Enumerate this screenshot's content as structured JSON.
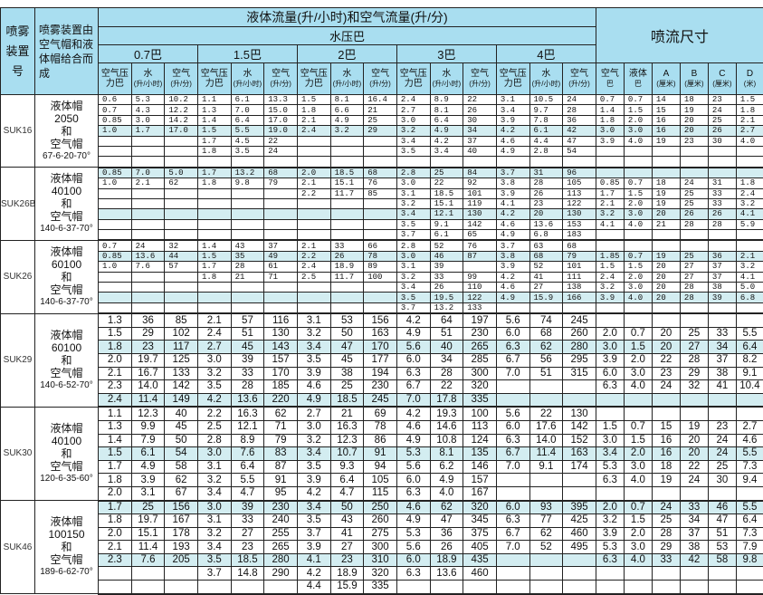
{
  "header": {
    "model_col": "喷雾装置号",
    "desc_col": "喷雾装置由空气帽和液体帽给合而成",
    "flow_title": "液体流量(升/小时)和空气流量(升/分)",
    "water_pressure": "水压巴",
    "jet_title": "喷流尺寸",
    "pressures": [
      "0.7巴",
      "1.5巴",
      "2巴",
      "3巴",
      "4巴"
    ],
    "sub_air_pressure": "空气压力巴",
    "sub_water": "水",
    "sub_water_unit": "(升/小时)",
    "sub_air": "空气",
    "sub_air_unit": "(升/分)",
    "jet_cols": [
      {
        "label": "空气",
        "unit": "巴"
      },
      {
        "label": "液体",
        "unit": "巴"
      },
      {
        "label": "A",
        "unit": "(厘米)"
      },
      {
        "label": "B",
        "unit": "(厘米)"
      },
      {
        "label": "C",
        "unit": "(厘米)"
      },
      {
        "label": "D",
        "unit": "(米)"
      }
    ]
  },
  "colors": {
    "header_bg": "#a9def0",
    "highlight_row": "#d3edf1"
  },
  "groups": [
    {
      "model": "SUK16",
      "liquid_cap": "液体帽",
      "liquid_no": "2050",
      "and": "和",
      "air_cap": "空气帽",
      "air_no": "67-6-20-70°",
      "style": "small",
      "highlight": [
        3
      ],
      "rows": [
        [
          "0.6",
          "5.3",
          "10.2",
          "1.1",
          "6.1",
          "13.3",
          "1.5",
          "8.1",
          "16.4",
          "2.4",
          "8.9",
          "22",
          "3.1",
          "10.5",
          "24",
          "0.7",
          "0.7",
          "14",
          "18",
          "23",
          "1.5"
        ],
        [
          "0.7",
          "4.3",
          "12.2",
          "1.3",
          "7.0",
          "15.0",
          "1.8",
          "6.6",
          "21",
          "2.7",
          "8.1",
          "26",
          "3.4",
          "9.7",
          "28",
          "1.4",
          "1.5",
          "15",
          "19",
          "24",
          "1.8"
        ],
        [
          "0.85",
          "3.0",
          "14.2",
          "1.4",
          "6.4",
          "17.0",
          "2.1",
          "4.9",
          "25",
          "3.0",
          "6.4",
          "30",
          "3.9",
          "7.8",
          "36",
          "1.8",
          "2.0",
          "16",
          "20",
          "25",
          "2.1"
        ],
        [
          "1.0",
          "1.7",
          "17.0",
          "1.5",
          "5.5",
          "19.0",
          "2.4",
          "3.2",
          "29",
          "3.2",
          "4.9",
          "34",
          "4.2",
          "6.1",
          "42",
          "3.0",
          "3.0",
          "16",
          "20",
          "26",
          "2.7"
        ],
        [
          "",
          "",
          "",
          "1.7",
          "4.5",
          "22",
          "",
          "",
          "",
          "3.4",
          "4.2",
          "37",
          "4.6",
          "4.4",
          "47",
          "3.9",
          "4.0",
          "19",
          "23",
          "30",
          "4.0"
        ],
        [
          "",
          "",
          "",
          "1.8",
          "3.5",
          "24",
          "",
          "",
          "",
          "3.5",
          "3.4",
          "40",
          "4.9",
          "2.8",
          "54",
          "",
          "",
          "",
          "",
          "",
          ""
        ],
        [
          "",
          "",
          "",
          "",
          "",
          "",
          "",
          "",
          "",
          "",
          "",
          "",
          "",
          "",
          "",
          "",
          "",
          "",
          "",
          "",
          ""
        ]
      ]
    },
    {
      "model": "SUK26B",
      "liquid_cap": "液体帽",
      "liquid_no": "40100",
      "and": "和",
      "air_cap": "空气帽",
      "air_no": "140-6-37-70°",
      "style": "small",
      "highlight": [
        0,
        4
      ],
      "rows": [
        [
          "0.85",
          "7.0",
          "5.0",
          "1.7",
          "13.2",
          "68",
          "2.0",
          "18.5",
          "68",
          "2.8",
          "25",
          "84",
          "3.7",
          "31",
          "96",
          "",
          "",
          "",
          "",
          "",
          ""
        ],
        [
          "1.0",
          "2.1",
          "62",
          "1.8",
          "9.8",
          "79",
          "2.1",
          "15.1",
          "76",
          "3.0",
          "22",
          "92",
          "3.8",
          "28",
          "105",
          "0.85",
          "0.7",
          "18",
          "24",
          "31",
          "1.8"
        ],
        [
          "",
          "",
          "",
          "",
          "",
          "",
          "2.2",
          "11.7",
          "85",
          "3.1",
          "18.5",
          "101",
          "3.9",
          "26",
          "113",
          "1.7",
          "1.5",
          "19",
          "25",
          "33",
          "2.4"
        ],
        [
          "",
          "",
          "",
          "",
          "",
          "",
          "",
          "",
          "",
          "3.2",
          "15.1",
          "119",
          "4.1",
          "23",
          "122",
          "2.1",
          "2.0",
          "19",
          "25",
          "33",
          "3.2"
        ],
        [
          "",
          "",
          "",
          "",
          "",
          "",
          "",
          "",
          "",
          "3.4",
          "12.1",
          "130",
          "4.2",
          "20",
          "130",
          "3.2",
          "3.0",
          "20",
          "26",
          "26",
          "4.1"
        ],
        [
          "",
          "",
          "",
          "",
          "",
          "",
          "",
          "",
          "",
          "3.5",
          "9.1",
          "142",
          "4.6",
          "13.6",
          "153",
          "4.1",
          "4.0",
          "21",
          "28",
          "28",
          "5.9"
        ],
        [
          "",
          "",
          "",
          "",
          "",
          "",
          "",
          "",
          "",
          "3.7",
          "6.1",
          "65",
          "4.9",
          "6.8",
          "183",
          "",
          "",
          "",
          "",
          "",
          ""
        ]
      ]
    },
    {
      "model": "SUK26",
      "liquid_cap": "液体帽",
      "liquid_no": "60100",
      "and": "和",
      "air_cap": "空气帽",
      "air_no": "140-6-37-70°",
      "style": "small",
      "highlight": [
        1,
        5
      ],
      "rows": [
        [
          "0.7",
          "24",
          "32",
          "1.4",
          "43",
          "37",
          "2.1",
          "33",
          "66",
          "2.8",
          "52",
          "76",
          "3.7",
          "63",
          "68",
          "",
          "",
          "",
          "",
          "",
          ""
        ],
        [
          "0.85",
          "13.6",
          "44",
          "1.5",
          "35",
          "49",
          "2.2",
          "26",
          "78",
          "3.0",
          "46",
          "87",
          "3.8",
          "68",
          "79",
          "1.85",
          "0.7",
          "19",
          "25",
          "36",
          "2.1"
        ],
        [
          "1.0",
          "7.6",
          "57",
          "1.7",
          "28",
          "61",
          "2.4",
          "18.9",
          "89",
          "3.1",
          "39",
          "",
          "3.9",
          "52",
          "101",
          "1.5",
          "1.5",
          "20",
          "27",
          "37",
          "3.2"
        ],
        [
          "",
          "",
          "",
          "1.8",
          "21",
          "71",
          "2.5",
          "11.7",
          "100",
          "3.2",
          "33",
          "99",
          "4.2",
          "41",
          "111",
          "2.4",
          "2.0",
          "20",
          "27",
          "37",
          "4.1"
        ],
        [
          "",
          "",
          "",
          "",
          "",
          "",
          "",
          "",
          "",
          "3.4",
          "26",
          "110",
          "4.6",
          "27",
          "138",
          "3.2",
          "3.0",
          "20",
          "28",
          "38",
          "5.0"
        ],
        [
          "",
          "",
          "",
          "",
          "",
          "",
          "",
          "",
          "",
          "3.5",
          "19.5",
          "122",
          "4.9",
          "15.9",
          "166",
          "3.9",
          "4.0",
          "20",
          "28",
          "39",
          "6.8"
        ],
        [
          "",
          "",
          "",
          "",
          "",
          "",
          "",
          "",
          "",
          "3.7",
          "13.2",
          "133",
          "",
          "",
          "",
          "",
          "",
          "",
          "",
          "",
          ""
        ]
      ]
    },
    {
      "model": "SUK29",
      "liquid_cap": "液体帽",
      "liquid_no": "60100",
      "and": "和",
      "air_cap": "空气帽",
      "air_no": "140-6-52-70°",
      "style": "big",
      "highlight": [
        2,
        6
      ],
      "rows": [
        [
          "1.3",
          "36",
          "85",
          "2.1",
          "57",
          "116",
          "3.1",
          "53",
          "156",
          "4.2",
          "64",
          "197",
          "5.6",
          "74",
          "245",
          "",
          "",
          "",
          "",
          "",
          ""
        ],
        [
          "1.5",
          "29",
          "102",
          "2.4",
          "51",
          "130",
          "3.2",
          "50",
          "163",
          "4.9",
          "51",
          "230",
          "6.0",
          "68",
          "260",
          "2.0",
          "0.7",
          "20",
          "25",
          "33",
          "5.5"
        ],
        [
          "1.8",
          "23",
          "117",
          "2.7",
          "45",
          "143",
          "3.4",
          "47",
          "170",
          "5.6",
          "40",
          "265",
          "6.3",
          "62",
          "280",
          "3.0",
          "1.5",
          "20",
          "27",
          "34",
          "6.4"
        ],
        [
          "2.0",
          "19.7",
          "125",
          "3.0",
          "39",
          "157",
          "3.5",
          "45",
          "177",
          "6.0",
          "34",
          "285",
          "6.7",
          "56",
          "295",
          "3.9",
          "2.0",
          "22",
          "28",
          "37",
          "8.2"
        ],
        [
          "2.1",
          "16.7",
          "133",
          "3.2",
          "33",
          "170",
          "3.9",
          "38",
          "194",
          "6.3",
          "28",
          "300",
          "7.0",
          "51",
          "315",
          "6.0",
          "3.0",
          "23",
          "29",
          "38",
          "9.1"
        ],
        [
          "2.3",
          "14.0",
          "142",
          "3.5",
          "28",
          "185",
          "4.6",
          "25",
          "230",
          "6.7",
          "22",
          "320",
          "",
          "",
          "",
          "6.3",
          "4.0",
          "24",
          "32",
          "41",
          "10.4"
        ],
        [
          "2.4",
          "11.4",
          "149",
          "4.2",
          "13.6",
          "220",
          "4.9",
          "18.5",
          "245",
          "7.0",
          "17.8",
          "335",
          "",
          "",
          "",
          "",
          "",
          "",
          "",
          "",
          ""
        ]
      ]
    },
    {
      "model": "SUK30",
      "liquid_cap": "液体帽",
      "liquid_no": "40100",
      "and": "和",
      "air_cap": "空气帽",
      "air_no": "120-6-35-60°",
      "style": "big",
      "highlight": [
        3
      ],
      "rows": [
        [
          "1.1",
          "12.3",
          "40",
          "2.2",
          "16.3",
          "62",
          "2.7",
          "21",
          "69",
          "4.2",
          "19.3",
          "100",
          "5.6",
          "22",
          "130",
          "",
          "",
          "",
          "",
          "",
          ""
        ],
        [
          "1.3",
          "9.9",
          "45",
          "2.5",
          "12.1",
          "71",
          "3.0",
          "16.3",
          "78",
          "4.6",
          "14.6",
          "113",
          "6.0",
          "17.6",
          "142",
          "1.5",
          "0.7",
          "15",
          "19",
          "23",
          "2.7"
        ],
        [
          "1.4",
          "7.9",
          "50",
          "2.8",
          "8.9",
          "79",
          "3.2",
          "12.3",
          "86",
          "4.9",
          "10.8",
          "124",
          "6.3",
          "14.0",
          "152",
          "3.0",
          "1.5",
          "16",
          "20",
          "24",
          "4.6"
        ],
        [
          "1.5",
          "6.1",
          "54",
          "3.0",
          "7.6",
          "83",
          "3.4",
          "10.7",
          "91",
          "5.3",
          "8.1",
          "135",
          "6.7",
          "11.4",
          "163",
          "3.4",
          "2.0",
          "16",
          "20",
          "24",
          "5.5"
        ],
        [
          "1.7",
          "4.9",
          "58",
          "3.1",
          "6.4",
          "87",
          "3.5",
          "9.3",
          "94",
          "5.6",
          "6.2",
          "146",
          "7.0",
          "9.1",
          "174",
          "5.3",
          "3.0",
          "18",
          "22",
          "25",
          "7.3"
        ],
        [
          "1.8",
          "3.9",
          "62",
          "3.2",
          "5.5",
          "91",
          "3.9",
          "6.4",
          "105",
          "6.0",
          "4.9",
          "157",
          "",
          "",
          "",
          "6.3",
          "4.0",
          "19",
          "24",
          "30",
          "9.4"
        ],
        [
          "2.0",
          "3.1",
          "67",
          "3.4",
          "4.7",
          "95",
          "4.2",
          "4.7",
          "115",
          "6.3",
          "4.0",
          "167",
          "",
          "",
          "",
          "",
          "",
          "",
          "",
          "",
          ""
        ]
      ]
    },
    {
      "model": "SUK46",
      "liquid_cap": "液体帽",
      "liquid_no": "100150",
      "and": "和",
      "air_cap": "空气帽",
      "air_no": "189-6-62-70°",
      "style": "big",
      "highlight": [
        0,
        4
      ],
      "rows": [
        [
          "1.7",
          "25",
          "156",
          "3.0",
          "39",
          "230",
          "3.4",
          "50",
          "250",
          "4.6",
          "62",
          "320",
          "6.0",
          "93",
          "395",
          "2.0",
          "0.7",
          "24",
          "33",
          "46",
          "5.5"
        ],
        [
          "1.8",
          "19.7",
          "167",
          "3.1",
          "33",
          "240",
          "3.5",
          "43",
          "260",
          "4.9",
          "47",
          "345",
          "6.3",
          "77",
          "425",
          "3.2",
          "1.5",
          "25",
          "34",
          "47",
          "6.4"
        ],
        [
          "2.0",
          "15.1",
          "178",
          "3.2",
          "27",
          "255",
          "3.7",
          "41",
          "275",
          "5.3",
          "36",
          "375",
          "6.7",
          "62",
          "460",
          "3.9",
          "2.0",
          "28",
          "37",
          "51",
          "7.3"
        ],
        [
          "2.1",
          "11.4",
          "193",
          "3.4",
          "23",
          "265",
          "3.9",
          "27",
          "300",
          "5.6",
          "26",
          "405",
          "7.0",
          "52",
          "495",
          "5.3",
          "3.0",
          "29",
          "38",
          "53",
          "7.9"
        ],
        [
          "2.3",
          "7.6",
          "205",
          "3.5",
          "18.5",
          "280",
          "4.1",
          "23",
          "310",
          "6.0",
          "18.9",
          "435",
          "",
          "",
          "",
          "6.3",
          "4.0",
          "33",
          "42",
          "58",
          "9.8"
        ],
        [
          "",
          "",
          "",
          "3.7",
          "14.8",
          "290",
          "4.2",
          "18.9",
          "320",
          "6.3",
          "13.6",
          "460",
          "",
          "",
          "",
          "",
          "",
          "",
          "",
          "",
          ""
        ],
        [
          "",
          "",
          "",
          "",
          "",
          "",
          "4.4",
          "15.9",
          "335",
          "",
          "",
          "",
          "",
          "",
          "",
          "",
          "",
          "",
          "",
          "",
          ""
        ]
      ]
    }
  ]
}
